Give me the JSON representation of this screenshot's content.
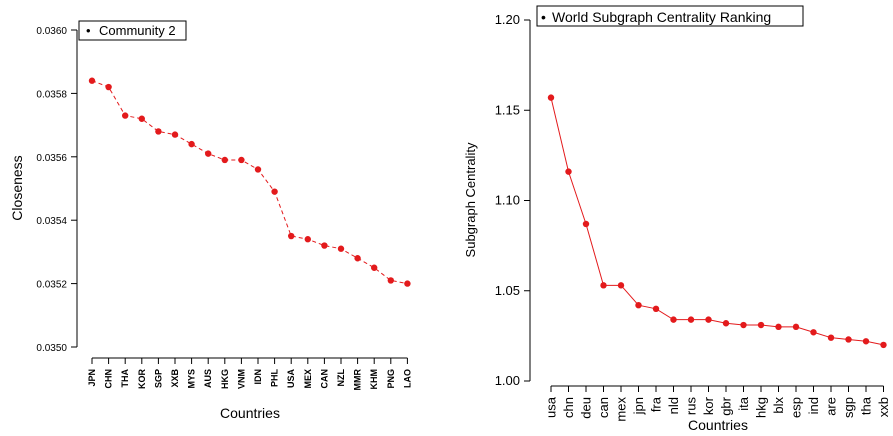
{
  "chart_data": [
    {
      "type": "line",
      "xlabel": "Countries",
      "ylabel": "Closeness",
      "ylim": [
        0.035,
        0.036
      ],
      "yticks": [
        0.035,
        0.0352,
        0.0354,
        0.0356,
        0.0358,
        0.036
      ],
      "ytick_labels": [
        "0.0350",
        "0.0352",
        "0.0354",
        "0.0356",
        "0.0358",
        "0.0360"
      ],
      "grid": false,
      "legend": {
        "position": "top-left",
        "label": "Community 2",
        "marker": "•"
      },
      "categories": [
        "JPN",
        "CHN",
        "THA",
        "KOR",
        "SGP",
        "XXB",
        "MYS",
        "AUS",
        "HKG",
        "VNM",
        "IDN",
        "PHL",
        "USA",
        "MEX",
        "CAN",
        "NZL",
        "MMR",
        "KHM",
        "PNG",
        "LAO"
      ],
      "series": [
        {
          "values": [
            0.03584,
            0.03582,
            0.03573,
            0.03572,
            0.03568,
            0.03567,
            0.03564,
            0.03561,
            0.03559,
            0.03559,
            0.03556,
            0.03549,
            0.03535,
            0.03534,
            0.03532,
            0.03531,
            0.03528,
            0.03525,
            0.03521,
            0.0352
          ],
          "color": "#e31a1c"
        }
      ]
    },
    {
      "type": "line",
      "xlabel": "Countries",
      "ylabel": "Subgraph Centrality",
      "ylim": [
        1.0,
        1.2
      ],
      "yticks": [
        1.0,
        1.05,
        1.1,
        1.15,
        1.2
      ],
      "ytick_labels": [
        "1.00",
        "1.05",
        "1.10",
        "1.15",
        "1.20"
      ],
      "grid": false,
      "legend": {
        "position": "top-left",
        "label": "World Subgraph Centrality Ranking",
        "marker": "•"
      },
      "categories": [
        "usa",
        "chn",
        "deu",
        "can",
        "mex",
        "jpn",
        "fra",
        "nld",
        "rus",
        "kor",
        "gbr",
        "ita",
        "hkg",
        "blx",
        "esp",
        "ind",
        "are",
        "sgp",
        "tha",
        "xxb"
      ],
      "series": [
        {
          "values": [
            1.157,
            1.116,
            1.087,
            1.053,
            1.053,
            1.042,
            1.04,
            1.034,
            1.034,
            1.034,
            1.032,
            1.031,
            1.031,
            1.03,
            1.03,
            1.027,
            1.024,
            1.023,
            1.022,
            1.02
          ],
          "color": "#e31a1c"
        }
      ]
    }
  ]
}
